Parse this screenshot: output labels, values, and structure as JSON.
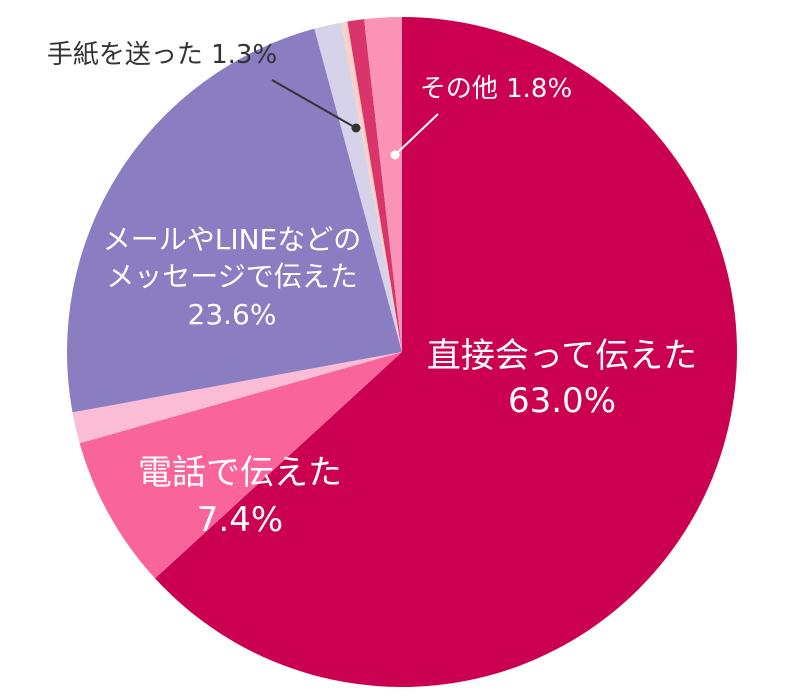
{
  "chart_data": {
    "type": "pie",
    "title": "",
    "start_angle_deg": 0,
    "direction": "clockwise",
    "slices": [
      {
        "label": "直接会って伝えた",
        "value": 63.0,
        "value_label": "63.0%",
        "color": "#cc0050"
      },
      {
        "label": "電話で伝えた",
        "value": 7.4,
        "value_label": "7.4%",
        "color": "#f9649b"
      },
      {
        "label": "",
        "value": 1.5,
        "value_label": "",
        "color": "#fbbcd6"
      },
      {
        "label": "メールやLINEなどのメッセージで伝えた",
        "value": 23.6,
        "value_label": "23.6%",
        "color": "#8b7dc1"
      },
      {
        "label": "手紙を送った",
        "value": 1.3,
        "value_label": "1.3%",
        "color": "#d6d2ea"
      },
      {
        "label": "",
        "value": 0.3,
        "value_label": "",
        "color": "#fbd1c6"
      },
      {
        "label": "",
        "value": 0.8,
        "value_label": "",
        "color": "#d9356c"
      },
      {
        "label": "その他",
        "value": 1.8,
        "value_label": "1.8%",
        "color": "#fa93b6"
      }
    ]
  },
  "labels": {
    "direct_line1": "直接会って伝えた",
    "direct_pct": "63.0%",
    "phone_line1": "電話で伝えた",
    "phone_pct": "7.4%",
    "message_line1": "メールやLINEなどの",
    "message_line2": "メッセージで伝えた",
    "message_pct": "23.6%",
    "letter": "手紙を送った 1.3%",
    "other": "その他 1.8%"
  }
}
